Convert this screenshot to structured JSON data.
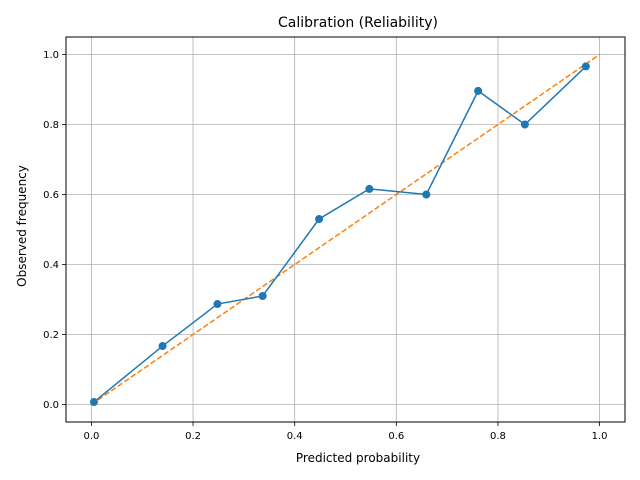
{
  "chart_data": {
    "type": "line",
    "title": "Calibration (Reliability)",
    "xlabel": "Predicted probability",
    "ylabel": "Observed frequency",
    "xlim": [
      -0.05,
      1.05
    ],
    "ylim": [
      -0.05,
      1.05
    ],
    "xticks": [
      0.0,
      0.2,
      0.4,
      0.6,
      0.8,
      1.0
    ],
    "yticks": [
      0.0,
      0.2,
      0.4,
      0.6,
      0.8,
      1.0
    ],
    "xtick_labels": [
      "0.0",
      "0.2",
      "0.4",
      "0.6",
      "0.8",
      "1.0"
    ],
    "ytick_labels": [
      "0.0",
      "0.2",
      "0.4",
      "0.6",
      "0.8",
      "1.0"
    ],
    "grid": true,
    "series": [
      {
        "style": "line-with-markers",
        "color": "#1f77b4",
        "x": [
          0.005,
          0.14,
          0.248,
          0.337,
          0.448,
          0.547,
          0.659,
          0.761,
          0.853,
          0.973
        ],
        "y": [
          0.007,
          0.167,
          0.287,
          0.31,
          0.53,
          0.616,
          0.6,
          0.896,
          0.8,
          0.966
        ]
      },
      {
        "style": "dashed",
        "color": "#ff7f0e",
        "x": [
          0.0,
          1.0
        ],
        "y": [
          0.0,
          1.0
        ]
      }
    ]
  }
}
